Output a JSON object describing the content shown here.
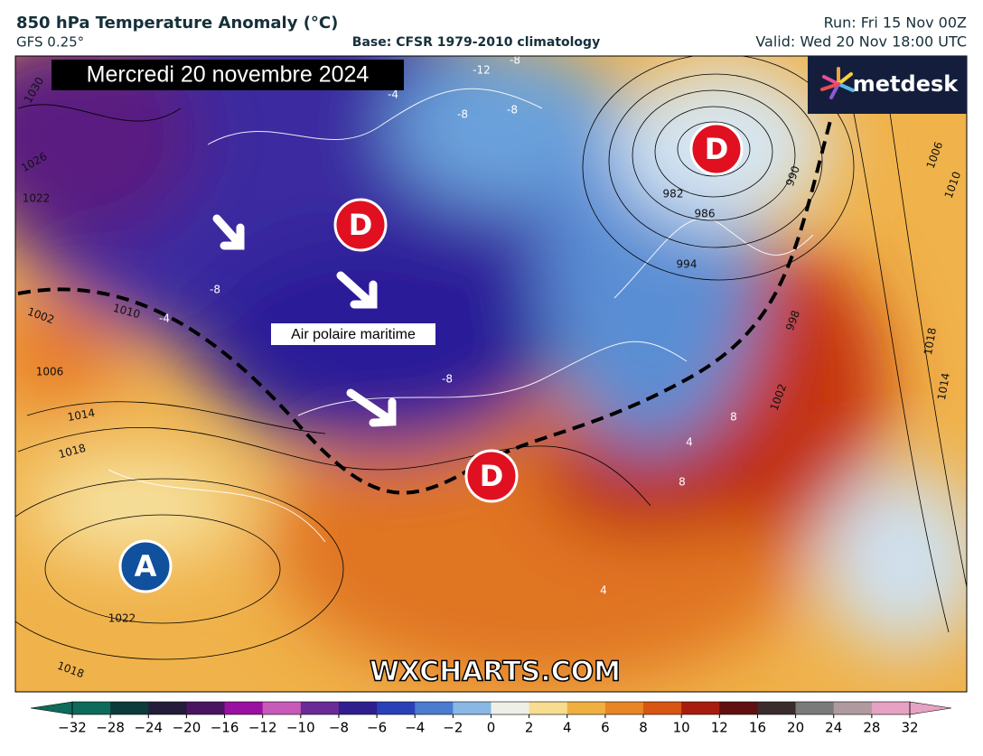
{
  "header": {
    "title": "850 hPa Temperature Anomaly (°C)",
    "model": "GFS 0.25°",
    "base": "Base: CFSR 1979-2010 climatology",
    "run": "Run: Fri 15 Nov 00Z",
    "valid": "Valid: Wed 20 Nov 18:00 UTC"
  },
  "banner": "Mercredi 20 novembre 2024",
  "logo": "metdesk",
  "pressure_centers": [
    "D",
    "D",
    "D",
    "A"
  ],
  "annotation": "Air polaire maritime",
  "watermark": "WXCHARTS.COM",
  "isobar_labels": [
    "1030",
    "1026",
    "1022",
    "1018",
    "1014",
    "1010",
    "1006",
    "1010",
    "1018",
    "1014",
    "1002",
    "998",
    "994",
    "990",
    "986",
    "982",
    "1022",
    "1018",
    "1002",
    "1006"
  ],
  "anomaly_labels": [
    "-8",
    "-4",
    "-8",
    "-12",
    "-8",
    "-8",
    "-8",
    "-4",
    "8",
    "8",
    "4",
    "4"
  ],
  "colorbar": {
    "ticks": [
      {
        "value": -32,
        "label": "−32"
      },
      {
        "value": -28,
        "label": "−28"
      },
      {
        "value": -24,
        "label": "−24"
      },
      {
        "value": -20,
        "label": "−20"
      },
      {
        "value": -16,
        "label": "−16"
      },
      {
        "value": -12,
        "label": "−12"
      },
      {
        "value": -10,
        "label": "−10"
      },
      {
        "value": -8,
        "label": "−8"
      },
      {
        "value": -6,
        "label": "−6"
      },
      {
        "value": -4,
        "label": "−4"
      },
      {
        "value": -2,
        "label": "−2"
      },
      0,
      2,
      4,
      6,
      8,
      10,
      12,
      16,
      20,
      24,
      28,
      32
    ],
    "colors": [
      "#0e6a5a",
      "#0b3b3a",
      "#241c3a",
      "#4a1560",
      "#9a10a0",
      "#c85ab8",
      "#6a2a98",
      "#2e1e8e",
      "#2a40b8",
      "#4a7cd0",
      "#8ab8e4",
      "#eef0e8",
      "#f8dc90",
      "#f0b040",
      "#e88524",
      "#d85512",
      "#a81c10",
      "#601010",
      "#3a2c2c",
      "#7a7a7a",
      "#b09aa0",
      "#e6a2c2"
    ]
  }
}
